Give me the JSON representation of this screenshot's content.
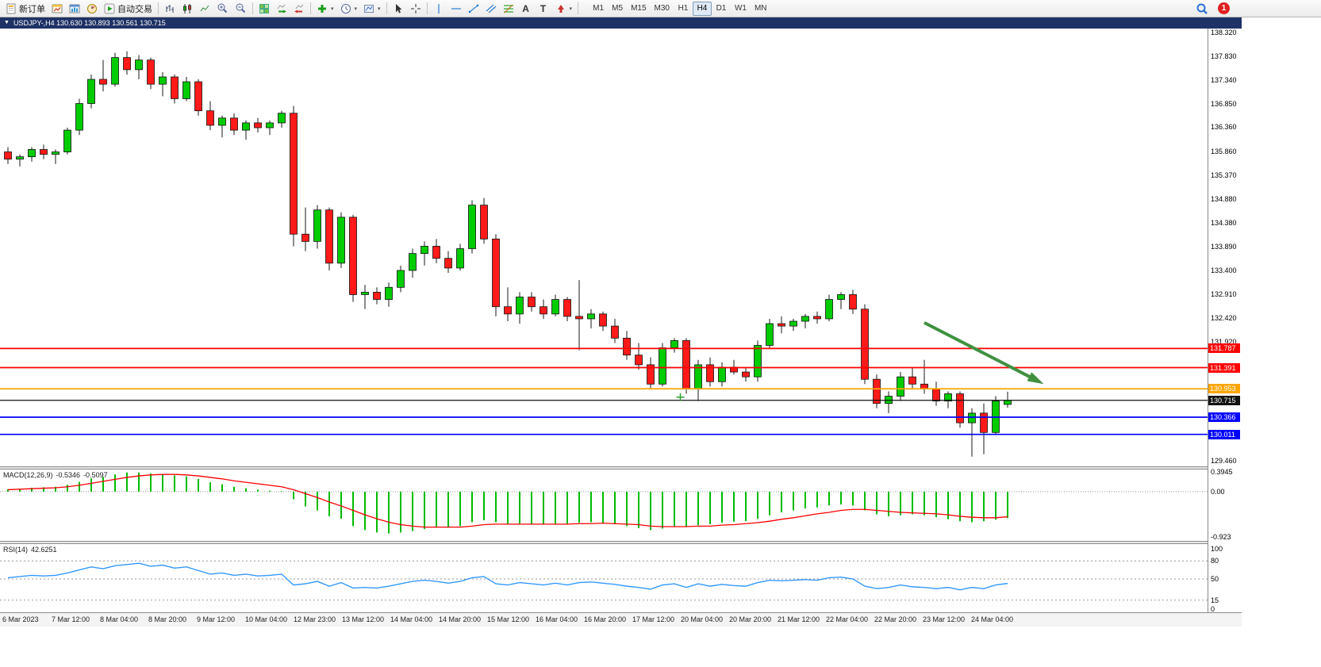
{
  "glyphs": {
    "dropdown": "▾",
    "window_menu": "▼",
    "text_tool": "A",
    "label_tool": "T"
  },
  "toolbar": {
    "new_order_label": "新订单",
    "autotrade_label": "自动交易",
    "timeframes": [
      "M1",
      "M5",
      "M15",
      "M30",
      "H1",
      "H4",
      "D1",
      "W1",
      "MN"
    ],
    "active_timeframe": "H4",
    "notification_count": "1",
    "icons": [
      "new-order",
      "charts",
      "profiles",
      "strategy-tester",
      "autotrading",
      "bar-chart",
      "candlestick-chart",
      "line-chart",
      "zoom-in",
      "zoom-out",
      "tile-windows",
      "auto-scroll",
      "chart-shift",
      "indicators",
      "periods",
      "templates",
      "cursor",
      "crosshair",
      "vertical-line",
      "horizontal-line",
      "trendline",
      "equidistant-channel",
      "fibonacci",
      "text",
      "label",
      "arrows",
      "search",
      "notifications"
    ]
  },
  "chart_window": {
    "title": "USDJPY-,H4  130.630 130.893 130.561 130.715"
  },
  "chart_data": {
    "type": "candlestick",
    "symbol": "USDJPY-",
    "timeframe": "H4",
    "last_ohlc": {
      "open": "130.630",
      "high": "130.893",
      "low": "130.561",
      "close": "130.715"
    },
    "price_range": [
      129.35,
      138.4
    ],
    "colors": {
      "up": "#00CC00",
      "down": "#FF1A1A",
      "wick": "#1a1a1a",
      "macd_bar": "#00BB00",
      "macd_signal": "#FF0000",
      "rsi_line": "#3399FF",
      "arrow": "#3F9140",
      "hline_red": "#FF0000",
      "hline_orange": "#FFA500",
      "hline_blue": "#0000FF"
    },
    "candles": [
      [
        135.85,
        135.95,
        135.6,
        135.7
      ],
      [
        135.7,
        135.8,
        135.55,
        135.75
      ],
      [
        135.75,
        135.95,
        135.65,
        135.9
      ],
      [
        135.9,
        136.0,
        135.7,
        135.8
      ],
      [
        135.8,
        135.9,
        135.6,
        135.85
      ],
      [
        135.85,
        136.35,
        135.8,
        136.3
      ],
      [
        136.3,
        136.95,
        136.2,
        136.85
      ],
      [
        136.85,
        137.45,
        136.75,
        137.35
      ],
      [
        137.35,
        137.75,
        137.1,
        137.25
      ],
      [
        137.25,
        137.9,
        137.2,
        137.8
      ],
      [
        137.8,
        137.93,
        137.45,
        137.55
      ],
      [
        137.55,
        137.85,
        137.35,
        137.75
      ],
      [
        137.75,
        137.8,
        137.15,
        137.25
      ],
      [
        137.25,
        137.5,
        137.0,
        137.4
      ],
      [
        137.4,
        137.45,
        136.85,
        136.95
      ],
      [
        136.95,
        137.4,
        136.9,
        137.3
      ],
      [
        137.3,
        137.35,
        136.6,
        136.7
      ],
      [
        136.7,
        136.9,
        136.3,
        136.4
      ],
      [
        136.4,
        136.6,
        136.15,
        136.55
      ],
      [
        136.55,
        136.65,
        136.2,
        136.3
      ],
      [
        136.3,
        136.5,
        136.1,
        136.45
      ],
      [
        136.45,
        136.55,
        136.25,
        136.35
      ],
      [
        136.35,
        136.5,
        136.2,
        136.45
      ],
      [
        136.45,
        136.7,
        136.35,
        136.65
      ],
      [
        136.65,
        136.8,
        133.9,
        134.15
      ],
      [
        134.15,
        134.7,
        133.8,
        134.0
      ],
      [
        134.0,
        134.75,
        133.85,
        134.65
      ],
      [
        134.65,
        134.7,
        133.4,
        133.55
      ],
      [
        133.55,
        134.6,
        133.45,
        134.5
      ],
      [
        134.5,
        134.55,
        132.75,
        132.9
      ],
      [
        132.9,
        133.1,
        132.6,
        132.95
      ],
      [
        132.95,
        133.05,
        132.7,
        132.8
      ],
      [
        132.8,
        133.15,
        132.65,
        133.05
      ],
      [
        133.05,
        133.5,
        132.95,
        133.4
      ],
      [
        133.4,
        133.85,
        133.25,
        133.75
      ],
      [
        133.75,
        134.0,
        133.5,
        133.9
      ],
      [
        133.9,
        134.05,
        133.55,
        133.65
      ],
      [
        133.65,
        133.8,
        133.35,
        133.45
      ],
      [
        133.45,
        133.95,
        133.4,
        133.85
      ],
      [
        133.85,
        134.85,
        133.75,
        134.75
      ],
      [
        134.75,
        134.9,
        133.95,
        134.05
      ],
      [
        134.05,
        134.15,
        132.45,
        132.65
      ],
      [
        132.65,
        133.05,
        132.35,
        132.5
      ],
      [
        132.5,
        132.95,
        132.3,
        132.85
      ],
      [
        132.85,
        132.95,
        132.55,
        132.65
      ],
      [
        132.65,
        132.8,
        132.4,
        132.5
      ],
      [
        132.5,
        132.9,
        132.45,
        132.8
      ],
      [
        132.8,
        132.85,
        132.35,
        132.45
      ],
      [
        132.45,
        133.2,
        131.75,
        132.4
      ],
      [
        132.4,
        132.6,
        132.2,
        132.5
      ],
      [
        132.5,
        132.55,
        132.15,
        132.25
      ],
      [
        132.25,
        132.4,
        131.9,
        132.0
      ],
      [
        132.0,
        132.15,
        131.55,
        131.65
      ],
      [
        131.65,
        131.9,
        131.35,
        131.45
      ],
      [
        131.45,
        131.6,
        130.95,
        131.05
      ],
      [
        131.05,
        131.9,
        131.0,
        131.8
      ],
      [
        131.8,
        132.0,
        131.7,
        131.95
      ],
      [
        131.95,
        132.0,
        130.85,
        130.95
      ],
      [
        130.95,
        131.55,
        130.7,
        131.45
      ],
      [
        131.45,
        131.6,
        131.0,
        131.1
      ],
      [
        131.1,
        131.5,
        131.0,
        131.4
      ],
      [
        131.4,
        131.55,
        131.25,
        131.3
      ],
      [
        131.3,
        131.4,
        131.1,
        131.2
      ],
      [
        131.2,
        131.95,
        131.1,
        131.85
      ],
      [
        131.85,
        132.4,
        131.8,
        132.3
      ],
      [
        132.3,
        132.45,
        132.1,
        132.25
      ],
      [
        132.25,
        132.4,
        132.15,
        132.35
      ],
      [
        132.35,
        132.5,
        132.2,
        132.45
      ],
      [
        132.45,
        132.55,
        132.3,
        132.4
      ],
      [
        132.4,
        132.9,
        132.35,
        132.8
      ],
      [
        132.8,
        132.95,
        132.6,
        132.9
      ],
      [
        132.9,
        133.0,
        132.5,
        132.6
      ],
      [
        132.6,
        132.7,
        131.05,
        131.15
      ],
      [
        131.15,
        131.25,
        130.55,
        130.65
      ],
      [
        130.65,
        130.9,
        130.45,
        130.8
      ],
      [
        130.8,
        131.3,
        130.7,
        131.2
      ],
      [
        131.2,
        131.4,
        130.95,
        131.05
      ],
      [
        131.05,
        131.55,
        130.85,
        130.95
      ],
      [
        130.95,
        131.1,
        130.6,
        130.7
      ],
      [
        130.7,
        130.9,
        130.55,
        130.85
      ],
      [
        130.85,
        130.9,
        130.15,
        130.25
      ],
      [
        130.25,
        130.55,
        129.55,
        130.45
      ],
      [
        130.45,
        130.65,
        129.6,
        130.05
      ],
      [
        130.05,
        130.8,
        130.0,
        130.7
      ],
      [
        130.63,
        130.893,
        130.561,
        130.715
      ]
    ],
    "price_ticks": [
      "138.320",
      "137.830",
      "137.340",
      "136.850",
      "136.360",
      "135.860",
      "135.370",
      "134.880",
      "134.380",
      "133.890",
      "133.400",
      "132.910",
      "132.420",
      "131.920",
      "129.460"
    ],
    "hlines": [
      {
        "price": "131.787",
        "label": "131.787",
        "color": "#FF0000"
      },
      {
        "price": "131.391",
        "label": "131.391",
        "color": "#FF0000"
      },
      {
        "price": "130.953",
        "label": "130.953",
        "color": "#FFA500"
      },
      {
        "price": "130.715",
        "label": "130.715",
        "color": "#111111",
        "current": true
      },
      {
        "price": "130.366",
        "label": "130.366",
        "color": "#0000FF"
      },
      {
        "price": "130.011",
        "label": "130.011",
        "color": "#0000FF"
      }
    ],
    "annotations": {
      "arrow": {
        "from_bar": 77,
        "from_price": 132.32,
        "to_bar": 86.5,
        "to_price": 131.12
      },
      "plus_marker": {
        "bar": 56.5,
        "price": 130.78
      }
    },
    "macd": {
      "label": "MACD(12,26,9)",
      "value": "-0.5346",
      "signal_value": "-0.5097",
      "axis_ticks": [
        "0.3945",
        "0.00",
        "-0.923"
      ],
      "range": [
        -1.0,
        0.45
      ],
      "histogram": [
        0.05,
        0.06,
        0.08,
        0.09,
        0.1,
        0.14,
        0.2,
        0.27,
        0.3,
        0.35,
        0.39,
        0.39,
        0.37,
        0.36,
        0.33,
        0.31,
        0.26,
        0.19,
        0.15,
        0.1,
        0.07,
        0.04,
        0.02,
        0.01,
        -0.15,
        -0.3,
        -0.38,
        -0.5,
        -0.55,
        -0.7,
        -0.78,
        -0.83,
        -0.85,
        -0.83,
        -0.8,
        -0.76,
        -0.73,
        -0.72,
        -0.7,
        -0.62,
        -0.58,
        -0.62,
        -0.66,
        -0.65,
        -0.66,
        -0.67,
        -0.65,
        -0.66,
        -0.63,
        -0.62,
        -0.63,
        -0.66,
        -0.7,
        -0.74,
        -0.78,
        -0.75,
        -0.7,
        -0.72,
        -0.68,
        -0.66,
        -0.63,
        -0.61,
        -0.6,
        -0.55,
        -0.48,
        -0.42,
        -0.38,
        -0.34,
        -0.32,
        -0.28,
        -0.26,
        -0.28,
        -0.38,
        -0.46,
        -0.5,
        -0.48,
        -0.46,
        -0.48,
        -0.52,
        -0.56,
        -0.6,
        -0.62,
        -0.6,
        -0.57,
        -0.5346
      ],
      "signal": [
        0.04,
        0.05,
        0.06,
        0.07,
        0.08,
        0.1,
        0.13,
        0.17,
        0.21,
        0.25,
        0.29,
        0.32,
        0.34,
        0.35,
        0.35,
        0.34,
        0.32,
        0.29,
        0.26,
        0.22,
        0.19,
        0.16,
        0.13,
        0.1,
        0.04,
        -0.04,
        -0.12,
        -0.21,
        -0.29,
        -0.38,
        -0.47,
        -0.55,
        -0.62,
        -0.67,
        -0.7,
        -0.72,
        -0.72,
        -0.72,
        -0.72,
        -0.7,
        -0.67,
        -0.66,
        -0.66,
        -0.66,
        -0.66,
        -0.66,
        -0.66,
        -0.66,
        -0.65,
        -0.65,
        -0.64,
        -0.65,
        -0.66,
        -0.67,
        -0.7,
        -0.71,
        -0.71,
        -0.71,
        -0.7,
        -0.7,
        -0.68,
        -0.67,
        -0.65,
        -0.63,
        -0.6,
        -0.56,
        -0.53,
        -0.49,
        -0.45,
        -0.42,
        -0.38,
        -0.36,
        -0.36,
        -0.38,
        -0.4,
        -0.42,
        -0.43,
        -0.44,
        -0.45,
        -0.47,
        -0.5,
        -0.52,
        -0.53,
        -0.53,
        -0.5097
      ]
    },
    "rsi": {
      "label": "RSI(14)",
      "value": "42.6251",
      "levels": [
        80,
        50,
        15
      ],
      "axis_ticks": [
        "100",
        "80",
        "50",
        "15",
        "0"
      ],
      "range": [
        0,
        100
      ],
      "values": [
        52,
        54,
        56,
        55,
        56,
        60,
        65,
        70,
        67,
        72,
        74,
        76,
        71,
        73,
        68,
        70,
        64,
        58,
        60,
        56,
        58,
        55,
        56,
        58,
        40,
        42,
        46,
        38,
        44,
        35,
        36,
        35,
        38,
        42,
        46,
        48,
        46,
        43,
        46,
        52,
        54,
        42,
        40,
        44,
        42,
        40,
        43,
        40,
        44,
        45,
        43,
        41,
        38,
        36,
        33,
        40,
        42,
        36,
        42,
        38,
        41,
        39,
        38,
        44,
        48,
        47,
        48,
        49,
        48,
        52,
        53,
        50,
        38,
        34,
        36,
        40,
        37,
        36,
        34,
        36,
        32,
        36,
        34,
        40,
        42.6
      ]
    },
    "time_labels": [
      "6 Mar 2023",
      "7 Mar 12:00",
      "8 Mar 04:00",
      "8 Mar 20:00",
      "9 Mar 12:00",
      "10 Mar 04:00",
      "12 Mar 23:00",
      "13 Mar 12:00",
      "14 Mar 04:00",
      "14 Mar 20:00",
      "15 Mar 12:00",
      "16 Mar 04:00",
      "16 Mar 20:00",
      "17 Mar 12:00",
      "20 Mar 04:00",
      "20 Mar 20:00",
      "21 Mar 12:00",
      "22 Mar 04:00",
      "22 Mar 20:00",
      "23 Mar 12:00",
      "24 Mar 04:00"
    ]
  }
}
